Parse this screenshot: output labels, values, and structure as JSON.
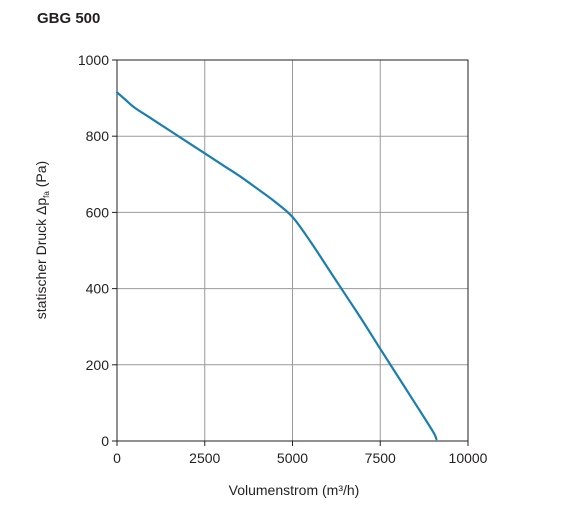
{
  "title": "GBG 500",
  "chart_data": {
    "type": "line",
    "title": "GBG 500",
    "xlabel": "Volumenstrom (m³/h)",
    "ylabel": {
      "prefix": "statischer Druck Δp",
      "subscript": "fa",
      "suffix": " (Pa)"
    },
    "xlim": [
      0,
      10000
    ],
    "ylim": [
      0,
      1000
    ],
    "xticks": [
      0,
      2500,
      5000,
      7500,
      10000
    ],
    "yticks": [
      0,
      200,
      400,
      600,
      800,
      1000
    ],
    "grid": true,
    "colors": {
      "series": "#1a7fb0",
      "grid": "#9a9a9a",
      "axis": "#231f20"
    },
    "series": [
      {
        "x": [
          0,
          250,
          500,
          1000,
          1500,
          2000,
          2500,
          3000,
          3500,
          4000,
          4500,
          5000,
          5500,
          6000,
          6500,
          7000,
          7500,
          8000,
          8500,
          9000,
          9100
        ],
        "values": [
          915,
          895,
          875,
          845,
          815,
          785,
          755,
          725,
          695,
          662,
          628,
          588,
          525,
          455,
          385,
          315,
          242,
          170,
          98,
          25,
          5
        ]
      }
    ]
  }
}
